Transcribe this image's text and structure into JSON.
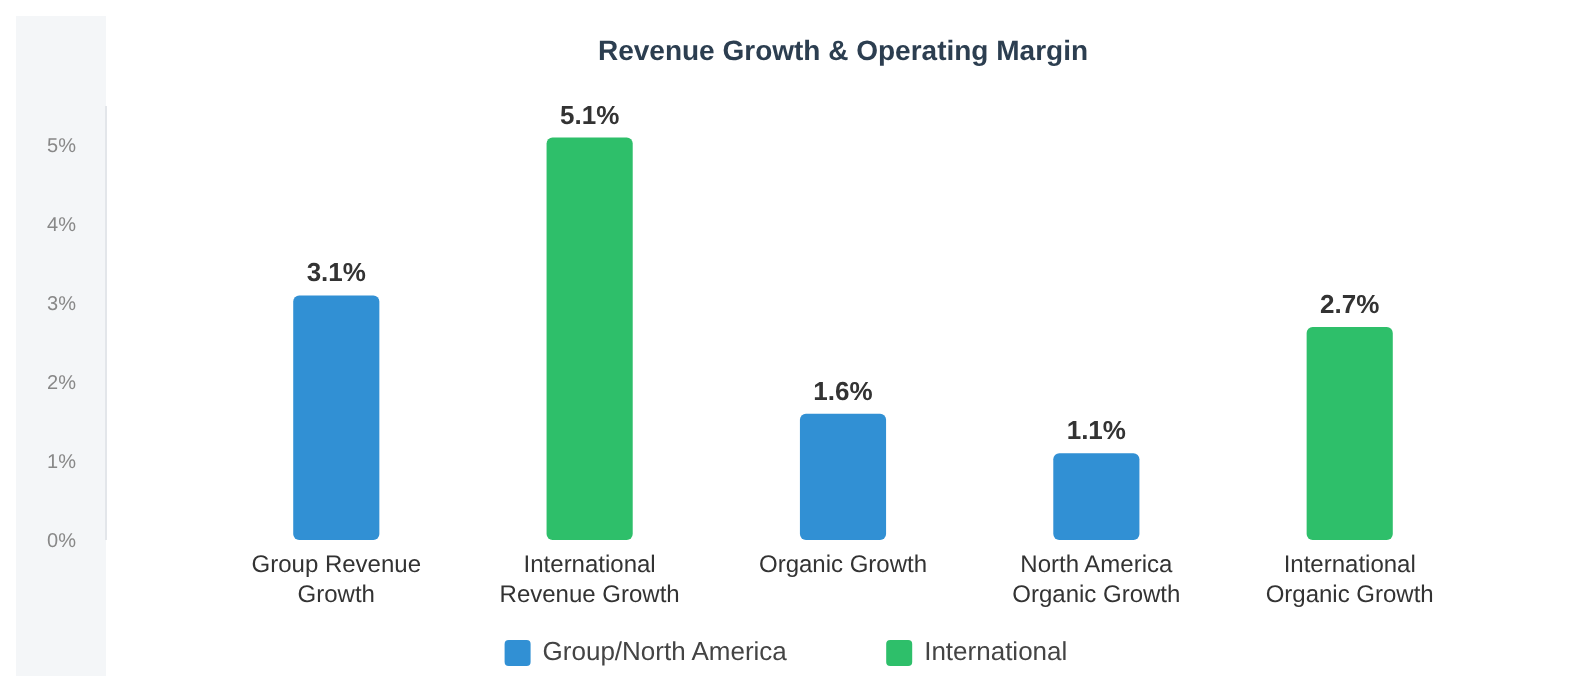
{
  "chart_data": {
    "type": "bar",
    "title": "Revenue Growth & Operating Margin",
    "categories": [
      "Group Revenue Growth",
      "International Revenue Growth",
      "Organic Growth",
      "North America Organic Growth",
      "International Organic Growth"
    ],
    "series": [
      {
        "name": "Group/North America",
        "color": "#3190d4",
        "values": [
          3.1,
          null,
          1.6,
          1.1,
          null
        ],
        "value_labels": [
          "3.1%",
          null,
          "1.6%",
          "1.1%",
          null
        ]
      },
      {
        "name": "International",
        "color": "#2ebf6a",
        "values": [
          null,
          5.1,
          null,
          null,
          2.7
        ],
        "value_labels": [
          null,
          "5.1%",
          null,
          null,
          "2.7%"
        ]
      }
    ],
    "ylim": [
      0,
      5.5
    ],
    "yticks": [
      {
        "value": 0,
        "label": "0%"
      },
      {
        "value": 1,
        "label": "1%"
      },
      {
        "value": 2,
        "label": "2%"
      },
      {
        "value": 3,
        "label": "3%"
      },
      {
        "value": 4,
        "label": "4%"
      },
      {
        "value": 5,
        "label": "5%"
      }
    ],
    "legend": "bottom"
  }
}
